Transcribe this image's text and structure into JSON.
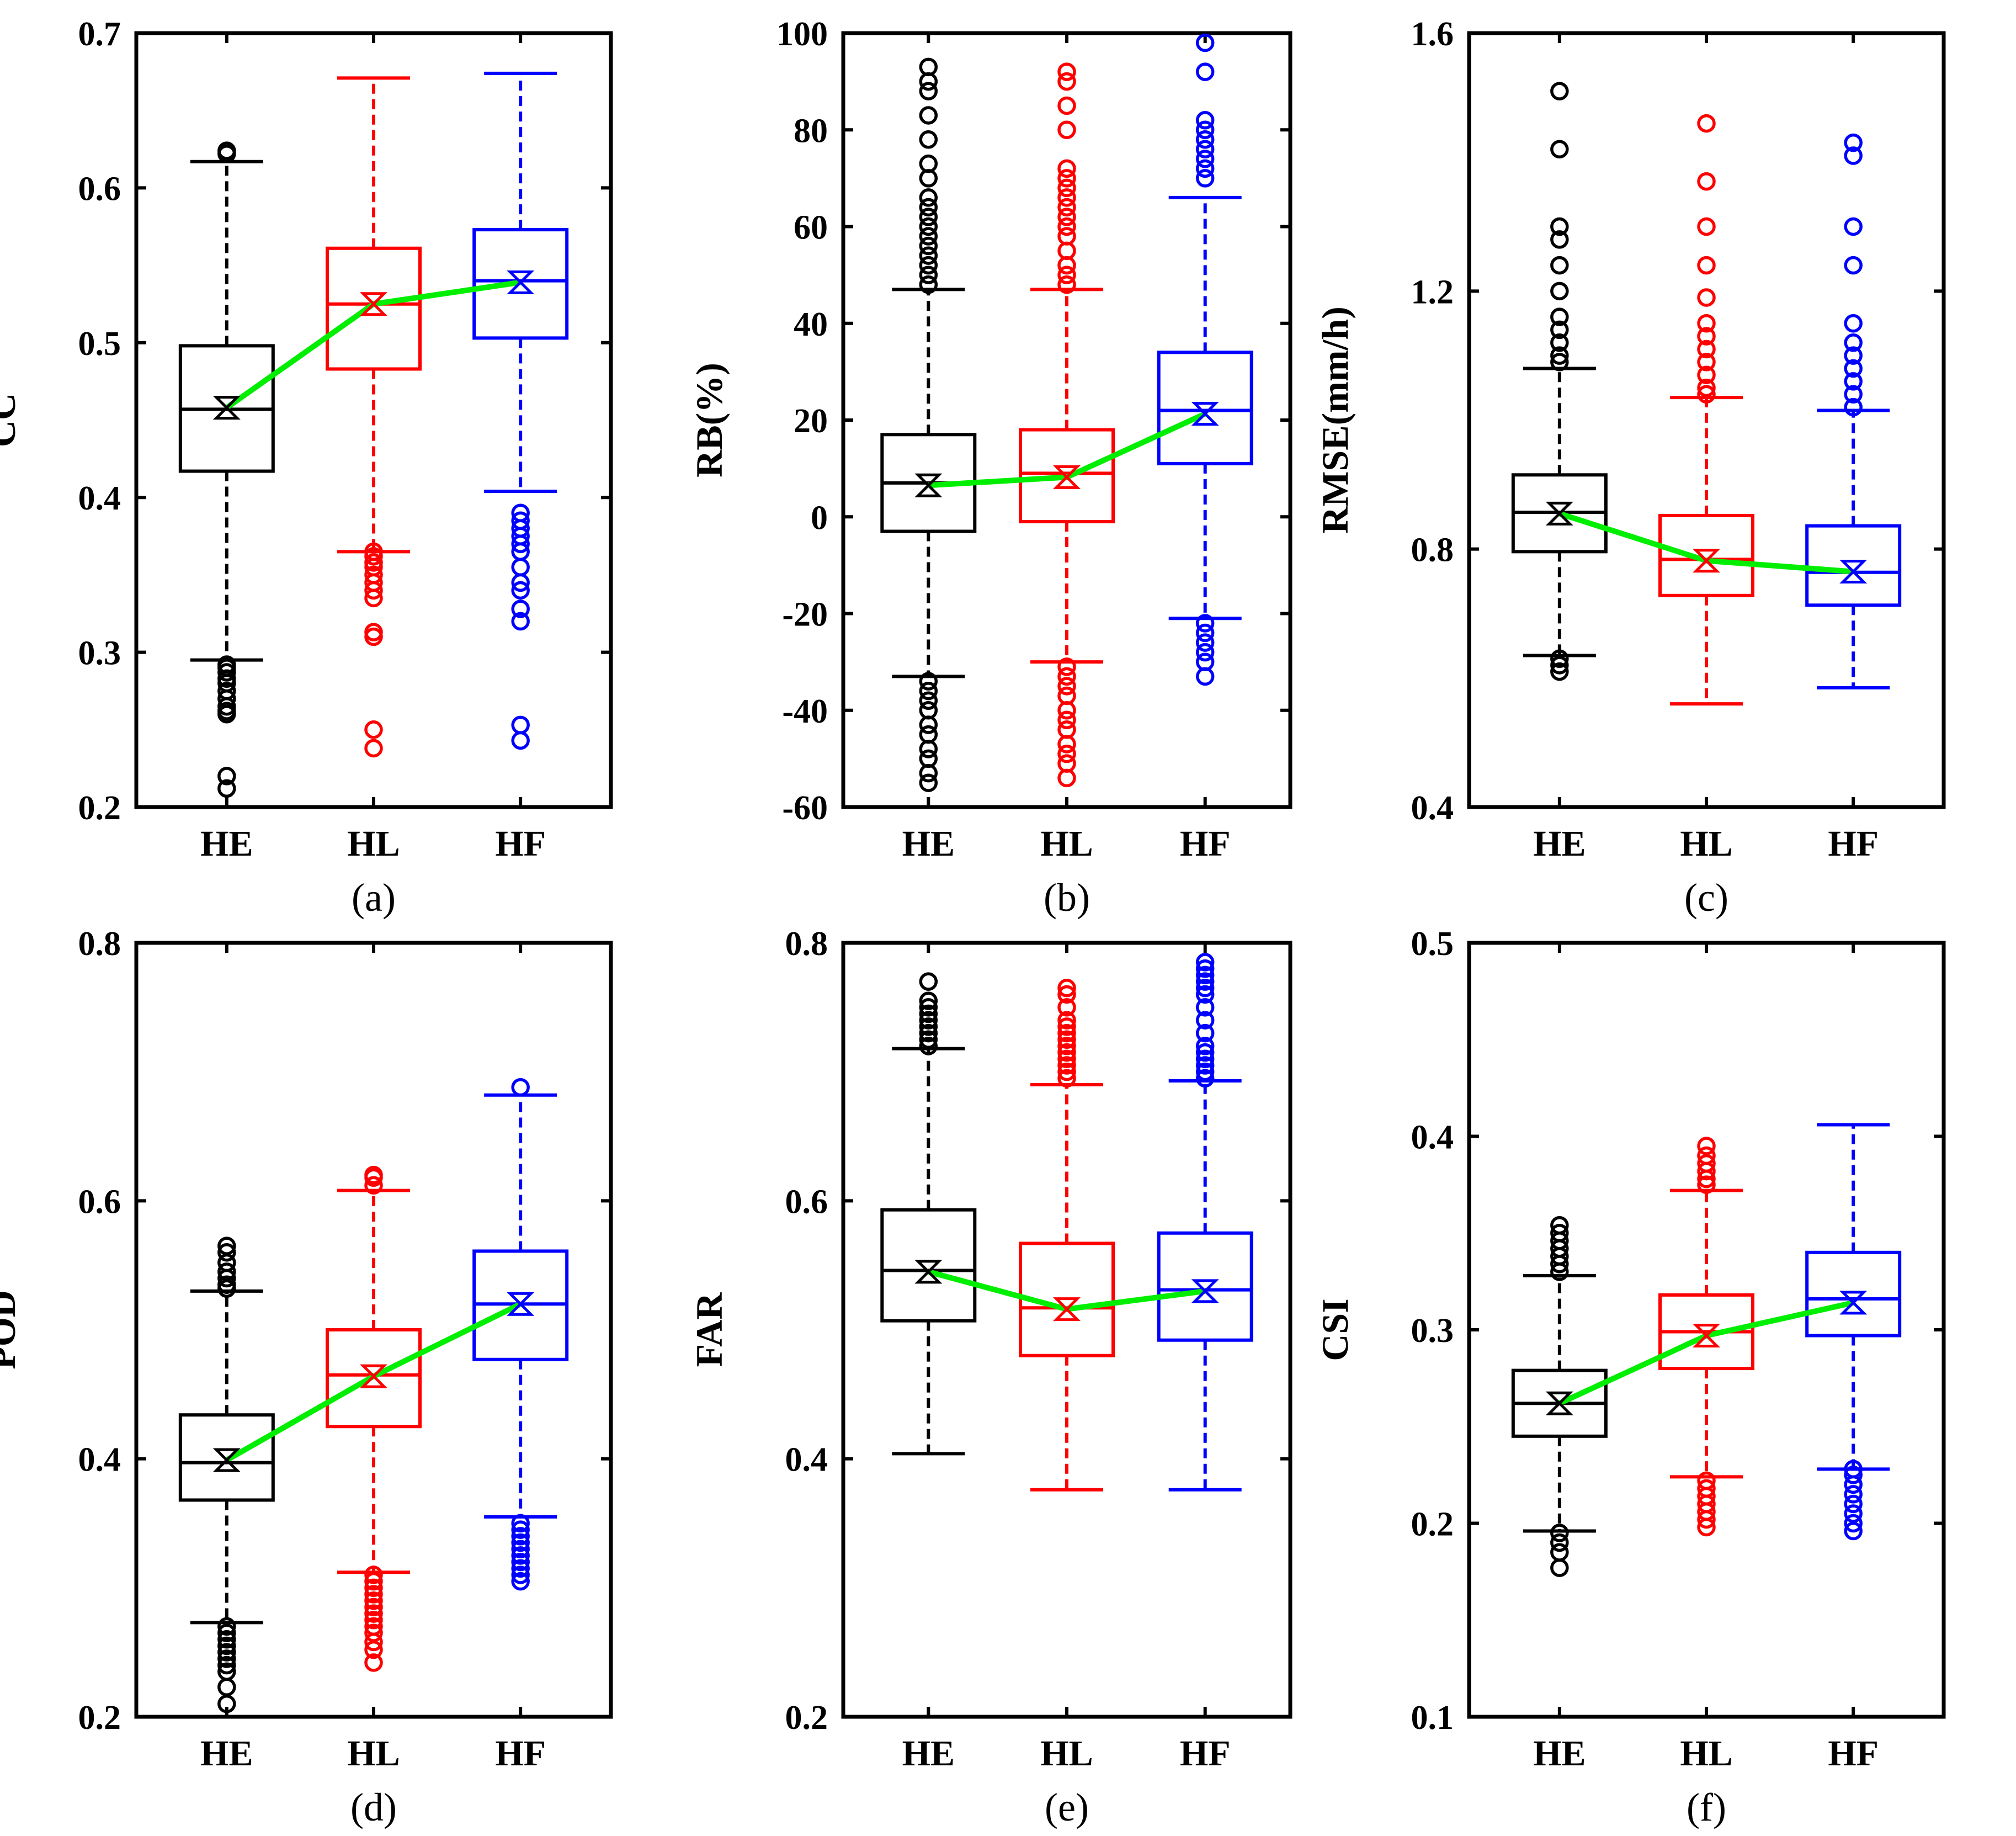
{
  "chart_data": [
    {
      "panel": "a",
      "caption": "(a)",
      "type": "box",
      "ylabel": "CC",
      "ylim": [
        0.2,
        0.7
      ],
      "yticks": [
        "0.2",
        "0.3",
        "0.4",
        "0.5",
        "0.6",
        "0.7"
      ],
      "yticksValues": [
        0.2,
        0.3,
        0.4,
        0.5,
        0.6,
        0.7
      ],
      "categories": [
        "HE",
        "HL",
        "HF"
      ],
      "colors": [
        "#000000",
        "#ff0000",
        "#0000ff"
      ],
      "mean_line_color": "#00ee00",
      "boxes": [
        {
          "name": "HE",
          "min": 0.295,
          "q1": 0.417,
          "median": 0.457,
          "q3": 0.498,
          "max": 0.617,
          "mean": 0.458,
          "outliers": [
            0.212,
            0.22,
            0.26,
            0.262,
            0.265,
            0.27,
            0.275,
            0.28,
            0.283,
            0.287,
            0.29,
            0.292,
            0.622,
            0.624
          ]
        },
        {
          "name": "HL",
          "min": 0.365,
          "q1": 0.483,
          "median": 0.525,
          "q3": 0.561,
          "max": 0.671,
          "mean": 0.525,
          "outliers": [
            0.238,
            0.25,
            0.31,
            0.313,
            0.335,
            0.34,
            0.345,
            0.35,
            0.355,
            0.358,
            0.362,
            0.365
          ]
        },
        {
          "name": "HF",
          "min": 0.404,
          "q1": 0.503,
          "median": 0.54,
          "q3": 0.573,
          "max": 0.674,
          "mean": 0.539,
          "outliers": [
            0.243,
            0.253,
            0.32,
            0.328,
            0.34,
            0.345,
            0.355,
            0.365,
            0.37,
            0.375,
            0.38,
            0.385,
            0.39
          ]
        }
      ]
    },
    {
      "panel": "b",
      "caption": "(b)",
      "type": "box",
      "ylabel": "RB(%)",
      "ylim": [
        -60,
        100
      ],
      "yticks": [
        "-60",
        "-40",
        "-20",
        "0",
        "20",
        "40",
        "60",
        "80",
        "100"
      ],
      "yticksValues": [
        -60,
        -40,
        -20,
        0,
        20,
        40,
        60,
        80,
        100
      ],
      "categories": [
        "HE",
        "HL",
        "HF"
      ],
      "colors": [
        "#000000",
        "#ff0000",
        "#0000ff"
      ],
      "mean_line_color": "#00ee00",
      "boxes": [
        {
          "name": "HE",
          "min": -33,
          "q1": -3,
          "median": 7,
          "q3": 17,
          "max": 47,
          "mean": 6.5,
          "outliers": [
            -55,
            -53,
            -50,
            -48,
            -45,
            -43,
            -40,
            -38,
            -36,
            -34,
            48,
            50,
            52,
            54,
            56,
            58,
            60,
            62,
            64,
            66,
            70,
            73,
            78,
            83,
            88,
            90,
            93
          ]
        },
        {
          "name": "HL",
          "min": -30,
          "q1": -1,
          "median": 9,
          "q3": 18,
          "max": 47,
          "mean": 8.2,
          "outliers": [
            -54,
            -51,
            -49,
            -47,
            -44,
            -42,
            -40,
            -37,
            -35,
            -33,
            -31,
            48,
            50,
            52,
            55,
            58,
            60,
            62,
            64,
            66,
            68,
            70,
            72,
            80,
            85,
            90,
            92
          ]
        },
        {
          "name": "HF",
          "min": -21,
          "q1": 11,
          "median": 22,
          "q3": 34,
          "max": 66,
          "mean": 21.3,
          "outliers": [
            -33,
            -30,
            -28,
            -26,
            -24,
            -22,
            70,
            72,
            74,
            76,
            78,
            80,
            82,
            92,
            98
          ]
        }
      ]
    },
    {
      "panel": "c",
      "caption": "(c)",
      "type": "box",
      "ylabel": "RMSE(mm/h)",
      "ylim": [
        0.4,
        1.6
      ],
      "yticks": [
        "0.4",
        "0.8",
        "1.2",
        "1.6"
      ],
      "yticksValues": [
        0.4,
        0.8,
        1.2,
        1.6
      ],
      "categories": [
        "HE",
        "HL",
        "HF"
      ],
      "colors": [
        "#000000",
        "#ff0000",
        "#0000ff"
      ],
      "mean_line_color": "#00ee00",
      "boxes": [
        {
          "name": "HE",
          "min": 0.635,
          "q1": 0.796,
          "median": 0.857,
          "q3": 0.915,
          "max": 1.08,
          "mean": 0.855,
          "outliers": [
            0.61,
            0.62,
            0.63,
            1.09,
            1.1,
            1.12,
            1.14,
            1.16,
            1.2,
            1.24,
            1.28,
            1.3,
            1.42,
            1.51
          ]
        },
        {
          "name": "HL",
          "min": 0.56,
          "q1": 0.728,
          "median": 0.784,
          "q3": 0.852,
          "max": 1.035,
          "mean": 0.782,
          "outliers": [
            1.04,
            1.05,
            1.07,
            1.09,
            1.11,
            1.13,
            1.15,
            1.19,
            1.24,
            1.3,
            1.37,
            1.46
          ]
        },
        {
          "name": "HF",
          "min": 0.585,
          "q1": 0.713,
          "median": 0.764,
          "q3": 0.836,
          "max": 1.015,
          "mean": 0.765,
          "outliers": [
            1.02,
            1.04,
            1.06,
            1.08,
            1.1,
            1.12,
            1.15,
            1.24,
            1.3,
            1.41,
            1.43
          ]
        }
      ]
    },
    {
      "panel": "d",
      "caption": "(d)",
      "type": "box",
      "ylabel": "POD",
      "ylim": [
        0.2,
        0.8
      ],
      "yticks": [
        "0.2",
        "0.4",
        "0.6",
        "0.8"
      ],
      "yticksValues": [
        0.2,
        0.4,
        0.6,
        0.8
      ],
      "categories": [
        "HE",
        "HL",
        "HF"
      ],
      "colors": [
        "#000000",
        "#ff0000",
        "#0000ff"
      ],
      "mean_line_color": "#00ee00",
      "boxes": [
        {
          "name": "HE",
          "min": 0.273,
          "q1": 0.368,
          "median": 0.397,
          "q3": 0.434,
          "max": 0.53,
          "mean": 0.399,
          "outliers": [
            0.21,
            0.223,
            0.235,
            0.24,
            0.245,
            0.25,
            0.255,
            0.26,
            0.265,
            0.27,
            0.532,
            0.535,
            0.54,
            0.545,
            0.552,
            0.56,
            0.565
          ]
        },
        {
          "name": "HL",
          "min": 0.312,
          "q1": 0.425,
          "median": 0.465,
          "q3": 0.5,
          "max": 0.608,
          "mean": 0.464,
          "outliers": [
            0.242,
            0.252,
            0.258,
            0.265,
            0.27,
            0.275,
            0.28,
            0.285,
            0.29,
            0.295,
            0.3,
            0.305,
            0.31,
            0.612,
            0.618,
            0.62
          ]
        },
        {
          "name": "HF",
          "min": 0.355,
          "q1": 0.477,
          "median": 0.52,
          "q3": 0.561,
          "max": 0.682,
          "mean": 0.52,
          "outliers": [
            0.305,
            0.31,
            0.315,
            0.32,
            0.325,
            0.33,
            0.335,
            0.34,
            0.345,
            0.35,
            0.688
          ]
        }
      ]
    },
    {
      "panel": "e",
      "caption": "(e)",
      "type": "box",
      "ylabel": "FAR",
      "ylim": [
        0.2,
        0.8
      ],
      "yticks": [
        "0.2",
        "0.4",
        "0.6",
        "0.8"
      ],
      "yticksValues": [
        0.2,
        0.4,
        0.6,
        0.8
      ],
      "categories": [
        "HE",
        "HL",
        "HF"
      ],
      "colors": [
        "#000000",
        "#ff0000",
        "#0000ff"
      ],
      "mean_line_color": "#00ee00",
      "boxes": [
        {
          "name": "HE",
          "min": 0.404,
          "q1": 0.507,
          "median": 0.546,
          "q3": 0.593,
          "max": 0.718,
          "mean": 0.545,
          "outliers": [
            0.72,
            0.725,
            0.73,
            0.735,
            0.74,
            0.745,
            0.75,
            0.755,
            0.77
          ]
        },
        {
          "name": "HL",
          "min": 0.376,
          "q1": 0.48,
          "median": 0.517,
          "q3": 0.567,
          "max": 0.69,
          "mean": 0.516,
          "outliers": [
            0.695,
            0.7,
            0.705,
            0.71,
            0.715,
            0.72,
            0.725,
            0.73,
            0.735,
            0.74,
            0.75,
            0.76,
            0.765
          ]
        },
        {
          "name": "HF",
          "min": 0.376,
          "q1": 0.492,
          "median": 0.531,
          "q3": 0.575,
          "max": 0.693,
          "mean": 0.53,
          "outliers": [
            0.695,
            0.7,
            0.705,
            0.71,
            0.715,
            0.72,
            0.73,
            0.74,
            0.75,
            0.76,
            0.765,
            0.77,
            0.775,
            0.78,
            0.785
          ]
        }
      ]
    },
    {
      "panel": "f",
      "caption": "(f)",
      "type": "box",
      "ylabel": "CSI",
      "ylim": [
        0.1,
        0.5
      ],
      "yticks": [
        "0.1",
        "0.2",
        "0.3",
        "0.4",
        "0.5"
      ],
      "yticksValues": [
        0.1,
        0.2,
        0.3,
        0.4,
        0.5
      ],
      "categories": [
        "HE",
        "HL",
        "HF"
      ],
      "colors": [
        "#000000",
        "#ff0000",
        "#0000ff"
      ],
      "mean_line_color": "#00ee00",
      "boxes": [
        {
          "name": "HE",
          "min": 0.196,
          "q1": 0.245,
          "median": 0.262,
          "q3": 0.279,
          "max": 0.328,
          "mean": 0.262,
          "outliers": [
            0.177,
            0.185,
            0.19,
            0.195,
            0.33,
            0.334,
            0.338,
            0.342,
            0.346,
            0.35,
            0.354
          ]
        },
        {
          "name": "HL",
          "min": 0.224,
          "q1": 0.28,
          "median": 0.299,
          "q3": 0.318,
          "max": 0.372,
          "mean": 0.297,
          "outliers": [
            0.198,
            0.202,
            0.206,
            0.21,
            0.214,
            0.218,
            0.222,
            0.375,
            0.378,
            0.382,
            0.386,
            0.39,
            0.395
          ]
        },
        {
          "name": "HF",
          "min": 0.228,
          "q1": 0.297,
          "median": 0.316,
          "q3": 0.34,
          "max": 0.406,
          "mean": 0.314,
          "outliers": [
            0.196,
            0.2,
            0.205,
            0.21,
            0.215,
            0.22,
            0.225,
            0.228
          ]
        }
      ]
    }
  ]
}
